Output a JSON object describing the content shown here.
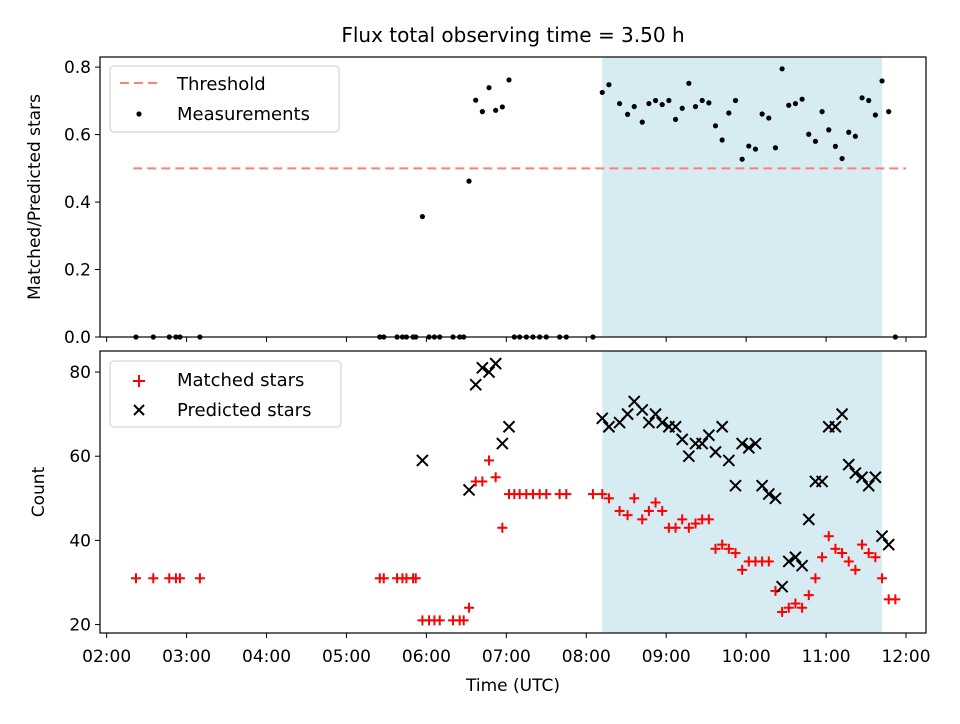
{
  "title": "Flux total observing time = 3.50 h",
  "chart_data": [
    {
      "type": "scatter",
      "ylabel": "Matched/Predicted stars",
      "xlim": [
        "01:55",
        "12:15"
      ],
      "ylim": [
        0,
        0.83
      ],
      "yticks": [
        0.0,
        0.2,
        0.4,
        0.6,
        0.8
      ],
      "ytick_labels": [
        "0.0",
        "0.2",
        "0.4",
        "0.6",
        "0.8"
      ],
      "legend": {
        "placement": "top-left",
        "entries": [
          "Threshold",
          "Measurements"
        ]
      },
      "threshold": {
        "name": "Threshold",
        "y": 0.5,
        "x": [
          "02:20",
          "12:00"
        ],
        "color": "#ff7f7f"
      },
      "shaded": {
        "x": [
          "08:12",
          "11:42"
        ],
        "color": "#add8e6"
      },
      "series": [
        {
          "name": "Measurements",
          "color": "#000000",
          "points": [
            [
              "02:22",
              0
            ],
            [
              "02:35",
              0
            ],
            [
              "02:47",
              0
            ],
            [
              "02:52",
              0
            ],
            [
              "02:55",
              0
            ],
            [
              "03:10",
              0
            ],
            [
              "05:25",
              0
            ],
            [
              "05:28",
              0
            ],
            [
              "05:38",
              0
            ],
            [
              "05:42",
              0
            ],
            [
              "05:45",
              0
            ],
            [
              "05:50",
              0
            ],
            [
              "05:52",
              0
            ],
            [
              "05:57",
              0.357
            ],
            [
              "06:02",
              0
            ],
            [
              "06:06",
              0
            ],
            [
              "06:10",
              0
            ],
            [
              "06:20",
              0
            ],
            [
              "06:25",
              0
            ],
            [
              "06:28",
              0
            ],
            [
              "06:32",
              0.462
            ],
            [
              "06:37",
              0.702
            ],
            [
              "06:42",
              0.668
            ],
            [
              "06:47",
              0.739
            ],
            [
              "06:52",
              0.672
            ],
            [
              "06:57",
              0.682
            ],
            [
              "07:02",
              0.762
            ],
            [
              "07:06",
              0
            ],
            [
              "07:10",
              0
            ],
            [
              "07:15",
              0
            ],
            [
              "07:20",
              0
            ],
            [
              "07:25",
              0
            ],
            [
              "07:30",
              0
            ],
            [
              "07:40",
              0
            ],
            [
              "07:45",
              0
            ],
            [
              "08:05",
              0
            ],
            [
              "08:12",
              0.725
            ],
            [
              "08:17",
              0.748
            ],
            [
              "08:25",
              0.692
            ],
            [
              "08:31",
              0.66
            ],
            [
              "08:36",
              0.683
            ],
            [
              "08:42",
              0.637
            ],
            [
              "08:47",
              0.692
            ],
            [
              "08:52",
              0.701
            ],
            [
              "08:57",
              0.689
            ],
            [
              "09:02",
              0.701
            ],
            [
              "09:07",
              0.645
            ],
            [
              "09:12",
              0.678
            ],
            [
              "09:17",
              0.752
            ],
            [
              "09:22",
              0.683
            ],
            [
              "09:27",
              0.701
            ],
            [
              "09:32",
              0.694
            ],
            [
              "09:37",
              0.626
            ],
            [
              "09:42",
              0.584
            ],
            [
              "09:47",
              0.664
            ],
            [
              "09:52",
              0.701
            ],
            [
              "09:57",
              0.527
            ],
            [
              "10:02",
              0.566
            ],
            [
              "10:07",
              0.557
            ],
            [
              "10:12",
              0.661
            ],
            [
              "10:17",
              0.649
            ],
            [
              "10:22",
              0.561
            ],
            [
              "10:27",
              0.795
            ],
            [
              "10:32",
              0.687
            ],
            [
              "10:37",
              0.692
            ],
            [
              "10:42",
              0.705
            ],
            [
              "10:47",
              0.601
            ],
            [
              "10:52",
              0.58
            ],
            [
              "10:57",
              0.668
            ],
            [
              "11:02",
              0.614
            ],
            [
              "11:07",
              0.565
            ],
            [
              "11:12",
              0.529
            ],
            [
              "11:17",
              0.607
            ],
            [
              "11:22",
              0.595
            ],
            [
              "11:27",
              0.709
            ],
            [
              "11:32",
              0.701
            ],
            [
              "11:37",
              0.658
            ],
            [
              "11:42",
              0.759
            ],
            [
              "11:47",
              0.668
            ],
            [
              "11:52",
              0
            ]
          ]
        }
      ]
    },
    {
      "type": "scatter",
      "xlabel": "Time (UTC)",
      "ylabel": "Count",
      "xlim": [
        "01:55",
        "12:15"
      ],
      "ylim": [
        18,
        85
      ],
      "xticks": [
        "02:00",
        "03:00",
        "04:00",
        "05:00",
        "06:00",
        "07:00",
        "08:00",
        "09:00",
        "10:00",
        "11:00",
        "12:00"
      ],
      "yticks": [
        20,
        40,
        60,
        80
      ],
      "ytick_labels": [
        "20",
        "40",
        "60",
        "80"
      ],
      "legend": {
        "placement": "top-left",
        "entries": [
          "Matched stars",
          "Predicted stars"
        ]
      },
      "shaded": {
        "x": [
          "08:12",
          "11:42"
        ],
        "color": "#add8e6"
      },
      "series": [
        {
          "name": "Matched stars",
          "marker": "+",
          "color": "#ff0000",
          "points": [
            [
              "02:22",
              31
            ],
            [
              "02:35",
              31
            ],
            [
              "02:47",
              31
            ],
            [
              "02:52",
              31
            ],
            [
              "02:55",
              31
            ],
            [
              "03:10",
              31
            ],
            [
              "05:25",
              31
            ],
            [
              "05:28",
              31
            ],
            [
              "05:38",
              31
            ],
            [
              "05:42",
              31
            ],
            [
              "05:45",
              31
            ],
            [
              "05:50",
              31
            ],
            [
              "05:52",
              31
            ],
            [
              "05:57",
              21
            ],
            [
              "06:02",
              21
            ],
            [
              "06:06",
              21
            ],
            [
              "06:10",
              21
            ],
            [
              "06:20",
              21
            ],
            [
              "06:25",
              21
            ],
            [
              "06:28",
              21
            ],
            [
              "06:32",
              24
            ],
            [
              "06:37",
              54
            ],
            [
              "06:42",
              54
            ],
            [
              "06:47",
              59
            ],
            [
              "06:52",
              55
            ],
            [
              "06:57",
              43
            ],
            [
              "07:02",
              51
            ],
            [
              "07:06",
              51
            ],
            [
              "07:10",
              51
            ],
            [
              "07:15",
              51
            ],
            [
              "07:20",
              51
            ],
            [
              "07:25",
              51
            ],
            [
              "07:30",
              51
            ],
            [
              "07:40",
              51
            ],
            [
              "07:45",
              51
            ],
            [
              "08:05",
              51
            ],
            [
              "08:12",
              51
            ],
            [
              "08:17",
              50
            ],
            [
              "08:25",
              47
            ],
            [
              "08:31",
              46
            ],
            [
              "08:36",
              50
            ],
            [
              "08:42",
              45
            ],
            [
              "08:47",
              47
            ],
            [
              "08:52",
              49
            ],
            [
              "08:57",
              47
            ],
            [
              "09:02",
              43
            ],
            [
              "09:07",
              43
            ],
            [
              "09:12",
              45
            ],
            [
              "09:17",
              43
            ],
            [
              "09:22",
              44
            ],
            [
              "09:27",
              45
            ],
            [
              "09:32",
              45
            ],
            [
              "09:37",
              38
            ],
            [
              "09:42",
              39
            ],
            [
              "09:47",
              38
            ],
            [
              "09:52",
              37
            ],
            [
              "09:57",
              33
            ],
            [
              "10:02",
              35
            ],
            [
              "10:07",
              35
            ],
            [
              "10:12",
              35
            ],
            [
              "10:17",
              35
            ],
            [
              "10:22",
              28
            ],
            [
              "10:27",
              23
            ],
            [
              "10:32",
              24
            ],
            [
              "10:37",
              25
            ],
            [
              "10:42",
              24
            ],
            [
              "10:47",
              27
            ],
            [
              "10:52",
              31
            ],
            [
              "10:57",
              36
            ],
            [
              "11:02",
              41
            ],
            [
              "11:07",
              38
            ],
            [
              "11:12",
              37
            ],
            [
              "11:17",
              35
            ],
            [
              "11:22",
              33
            ],
            [
              "11:27",
              39
            ],
            [
              "11:32",
              37
            ],
            [
              "11:37",
              36
            ],
            [
              "11:42",
              31
            ],
            [
              "11:47",
              26
            ],
            [
              "11:52",
              26
            ]
          ]
        },
        {
          "name": "Predicted stars",
          "marker": "x",
          "color": "#000000",
          "points": [
            [
              "05:57",
              59
            ],
            [
              "06:32",
              52
            ],
            [
              "06:37",
              77
            ],
            [
              "06:42",
              81
            ],
            [
              "06:47",
              80
            ],
            [
              "06:52",
              82
            ],
            [
              "06:57",
              63
            ],
            [
              "07:02",
              67
            ],
            [
              "08:12",
              69
            ],
            [
              "08:17",
              67
            ],
            [
              "08:25",
              68
            ],
            [
              "08:31",
              70
            ],
            [
              "08:36",
              73
            ],
            [
              "08:42",
              71
            ],
            [
              "08:47",
              68
            ],
            [
              "08:52",
              70
            ],
            [
              "08:57",
              68
            ],
            [
              "09:02",
              67
            ],
            [
              "09:07",
              67
            ],
            [
              "09:12",
              64
            ],
            [
              "09:17",
              60
            ],
            [
              "09:22",
              63
            ],
            [
              "09:27",
              63
            ],
            [
              "09:32",
              65
            ],
            [
              "09:37",
              61
            ],
            [
              "09:42",
              67
            ],
            [
              "09:47",
              59
            ],
            [
              "09:52",
              53
            ],
            [
              "09:57",
              63
            ],
            [
              "10:02",
              62
            ],
            [
              "10:07",
              63
            ],
            [
              "10:12",
              53
            ],
            [
              "10:17",
              51
            ],
            [
              "10:22",
              50
            ],
            [
              "10:27",
              29
            ],
            [
              "10:32",
              35
            ],
            [
              "10:37",
              36
            ],
            [
              "10:42",
              34
            ],
            [
              "10:47",
              45
            ],
            [
              "10:52",
              54
            ],
            [
              "10:57",
              54
            ],
            [
              "11:02",
              67
            ],
            [
              "11:07",
              67
            ],
            [
              "11:12",
              70
            ],
            [
              "11:17",
              58
            ],
            [
              "11:22",
              56
            ],
            [
              "11:27",
              55
            ],
            [
              "11:32",
              53
            ],
            [
              "11:37",
              55
            ],
            [
              "11:42",
              41
            ],
            [
              "11:47",
              39
            ]
          ]
        }
      ]
    }
  ]
}
